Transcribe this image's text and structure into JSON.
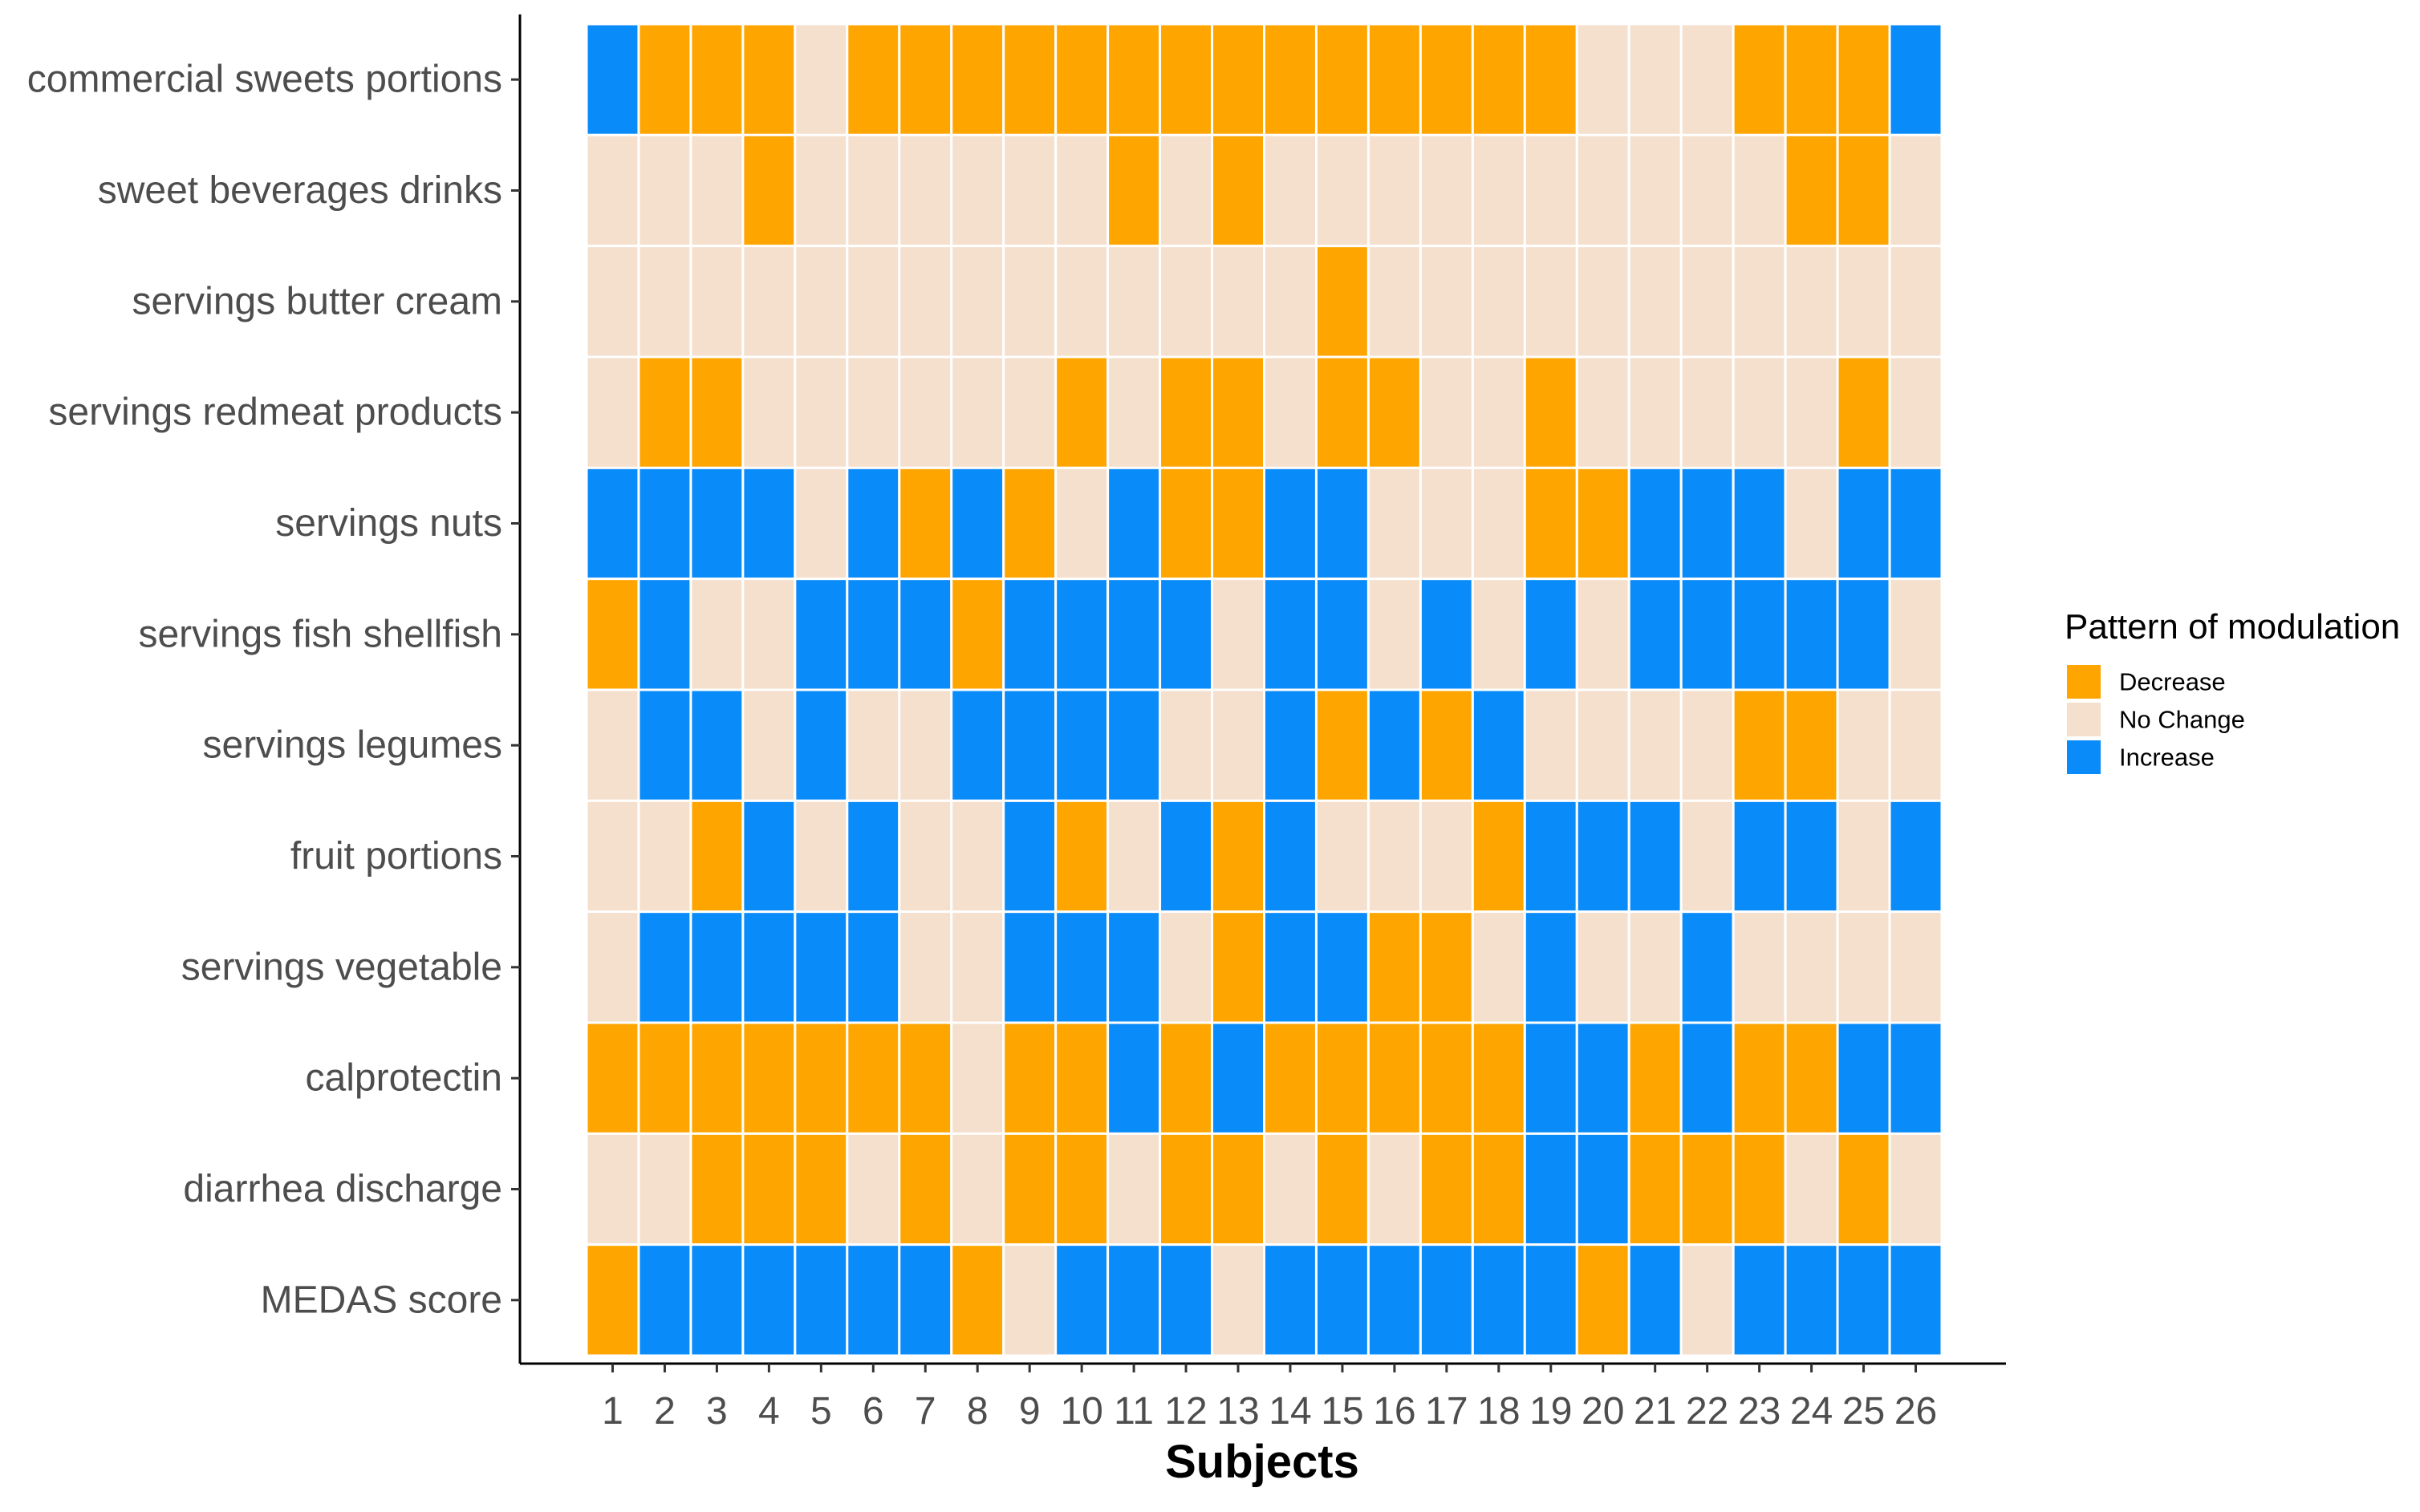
{
  "chart_data": {
    "type": "heatmap",
    "title": "",
    "xlabel": "Subjects",
    "ylabel": "",
    "x": [
      "1",
      "2",
      "3",
      "4",
      "5",
      "6",
      "7",
      "8",
      "9",
      "10",
      "11",
      "12",
      "13",
      "14",
      "15",
      "16",
      "17",
      "18",
      "19",
      "20",
      "21",
      "22",
      "23",
      "24",
      "25",
      "26"
    ],
    "y": [
      "commercial sweets portions",
      "sweet beverages drinks",
      "servings butter cream",
      "servings redmeat products",
      "servings nuts",
      "servings fish shellfish",
      "servings legumes",
      "fruit portions",
      "servings vegetable",
      "calprotectin",
      "diarrhea discharge",
      "MEDAS score"
    ],
    "legend": {
      "title": "Pattern of modulation",
      "position": "right",
      "entries": [
        {
          "key": "D",
          "label": "Decrease",
          "color": "#FFA500"
        },
        {
          "key": "N",
          "label": "No Change",
          "color": "#F5DFCD"
        },
        {
          "key": "I",
          "label": "Increase",
          "color": "#0A8BFA"
        }
      ]
    },
    "grid": false,
    "values": [
      [
        "I",
        "D",
        "D",
        "D",
        "N",
        "D",
        "D",
        "D",
        "D",
        "D",
        "D",
        "D",
        "D",
        "D",
        "D",
        "D",
        "D",
        "D",
        "D",
        "N",
        "N",
        "N",
        "D",
        "D",
        "D",
        "I"
      ],
      [
        "N",
        "N",
        "N",
        "D",
        "N",
        "N",
        "N",
        "N",
        "N",
        "N",
        "D",
        "N",
        "D",
        "N",
        "N",
        "N",
        "N",
        "N",
        "N",
        "N",
        "N",
        "N",
        "N",
        "D",
        "D",
        "N"
      ],
      [
        "N",
        "N",
        "N",
        "N",
        "N",
        "N",
        "N",
        "N",
        "N",
        "N",
        "N",
        "N",
        "N",
        "N",
        "D",
        "N",
        "N",
        "N",
        "N",
        "N",
        "N",
        "N",
        "N",
        "N",
        "N",
        "N"
      ],
      [
        "N",
        "D",
        "D",
        "N",
        "N",
        "N",
        "N",
        "N",
        "N",
        "D",
        "N",
        "D",
        "D",
        "N",
        "D",
        "D",
        "N",
        "N",
        "D",
        "N",
        "N",
        "N",
        "N",
        "N",
        "D",
        "N"
      ],
      [
        "I",
        "I",
        "I",
        "I",
        "N",
        "I",
        "D",
        "I",
        "D",
        "N",
        "I",
        "D",
        "D",
        "I",
        "I",
        "N",
        "N",
        "N",
        "D",
        "D",
        "I",
        "I",
        "I",
        "N",
        "I",
        "I"
      ],
      [
        "D",
        "I",
        "N",
        "N",
        "I",
        "I",
        "I",
        "D",
        "I",
        "I",
        "I",
        "I",
        "N",
        "I",
        "I",
        "N",
        "I",
        "N",
        "I",
        "N",
        "I",
        "I",
        "I",
        "I",
        "I",
        "N"
      ],
      [
        "N",
        "I",
        "I",
        "N",
        "I",
        "N",
        "N",
        "I",
        "I",
        "I",
        "I",
        "N",
        "N",
        "I",
        "D",
        "I",
        "D",
        "I",
        "N",
        "N",
        "N",
        "N",
        "D",
        "D",
        "N",
        "N"
      ],
      [
        "N",
        "N",
        "D",
        "I",
        "N",
        "I",
        "N",
        "N",
        "I",
        "D",
        "N",
        "I",
        "D",
        "I",
        "N",
        "N",
        "N",
        "D",
        "I",
        "I",
        "I",
        "N",
        "I",
        "I",
        "N",
        "I"
      ],
      [
        "N",
        "I",
        "I",
        "I",
        "I",
        "I",
        "N",
        "N",
        "I",
        "I",
        "I",
        "N",
        "D",
        "I",
        "I",
        "D",
        "D",
        "N",
        "I",
        "N",
        "N",
        "I",
        "N",
        "N",
        "N",
        "N"
      ],
      [
        "D",
        "D",
        "D",
        "D",
        "D",
        "D",
        "D",
        "N",
        "D",
        "D",
        "I",
        "D",
        "I",
        "D",
        "D",
        "D",
        "D",
        "D",
        "I",
        "I",
        "D",
        "I",
        "D",
        "D",
        "I",
        "I"
      ],
      [
        "N",
        "N",
        "D",
        "D",
        "D",
        "N",
        "D",
        "N",
        "D",
        "D",
        "N",
        "D",
        "D",
        "N",
        "D",
        "N",
        "D",
        "D",
        "I",
        "I",
        "D",
        "D",
        "D",
        "N",
        "D",
        "N"
      ],
      [
        "D",
        "I",
        "I",
        "I",
        "I",
        "I",
        "I",
        "D",
        "N",
        "I",
        "I",
        "I",
        "N",
        "I",
        "I",
        "I",
        "I",
        "I",
        "I",
        "D",
        "I",
        "N",
        "I",
        "I",
        "I",
        "I"
      ]
    ]
  }
}
